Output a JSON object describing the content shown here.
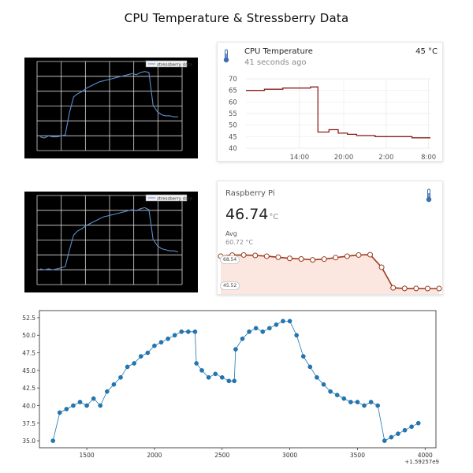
{
  "page": {
    "title": "CPU Temperature & Stressberry Data"
  },
  "stress_charts": [
    {
      "legend": "stressberry data"
    },
    {
      "legend": "stressberry data"
    }
  ],
  "history_card": {
    "title": "CPU Temperature",
    "subtitle": "41 seconds ago",
    "current": "45 °C",
    "icon": "thermometer-icon",
    "line_color": "#8b1e1e"
  },
  "gauge_card": {
    "title": "Raspberry Pi",
    "value": "46.74",
    "unit": "°C",
    "avg_label": "Avg",
    "avg_value": "60.72 °C",
    "max_pill": "68.54",
    "min_pill": "45.52",
    "icon": "thermometer-icon",
    "fill_color": "#fbe6e0",
    "line_color": "#9a3b1e"
  },
  "chart_data": [
    {
      "type": "line",
      "title": "",
      "legend": [
        "stressberry data"
      ],
      "grid": true,
      "background": "#000000",
      "series": [
        {
          "name": "stressberry data",
          "values": [
            10,
            9,
            11,
            10,
            10,
            11,
            12,
            33,
            48,
            51,
            53,
            56,
            58,
            60,
            62,
            63,
            64,
            65,
            66,
            67,
            68,
            69,
            70,
            69,
            71,
            72,
            71,
            40,
            34,
            31,
            30,
            30,
            29,
            29
          ]
        }
      ]
    },
    {
      "type": "line",
      "title": "",
      "legend": [
        "stressberry data"
      ],
      "grid": true,
      "background": "#000000",
      "series": [
        {
          "name": "stressberry data",
          "values": [
            12,
            11,
            12,
            11,
            12,
            13,
            14,
            30,
            44,
            48,
            50,
            53,
            55,
            57,
            59,
            61,
            62,
            63,
            64,
            65,
            66,
            67,
            68,
            67,
            69,
            70,
            68,
            40,
            34,
            31,
            30,
            29,
            29,
            28
          ]
        }
      ]
    },
    {
      "type": "line",
      "title": "",
      "x_ticks": [
        "14:00",
        "20:00",
        "2:00",
        "8:00"
      ],
      "y_ticks": [
        40,
        45,
        50,
        55,
        60,
        65,
        70
      ],
      "ylim": [
        40,
        70
      ],
      "grid": true,
      "series": [
        {
          "name": "CPU Temperature",
          "x": [
            0.0,
            0.05,
            0.1,
            0.15,
            0.2,
            0.25,
            0.3,
            0.35,
            0.38,
            0.39,
            0.42,
            0.45,
            0.5,
            0.55,
            0.6,
            0.65,
            0.7,
            0.75,
            0.8,
            0.85,
            0.9,
            0.95,
            1.0
          ],
          "values": [
            65,
            65,
            65.5,
            65.5,
            66,
            66,
            66,
            66.5,
            66.5,
            47,
            47,
            48,
            46.5,
            46,
            45.5,
            45.5,
            45,
            45,
            45,
            45,
            44.5,
            44.5,
            44.5
          ]
        }
      ]
    },
    {
      "type": "area",
      "title": "",
      "ylim": [
        45.52,
        68.54
      ],
      "series": [
        {
          "name": "Raspberry Pi",
          "values": [
            67.5,
            68.2,
            68.3,
            68.0,
            67.5,
            66.8,
            66.0,
            65.6,
            65.0,
            65.5,
            66.5,
            67.5,
            68.3,
            68.5,
            60.0,
            46.0,
            45.6,
            45.6,
            45.5,
            45.5
          ]
        }
      ]
    },
    {
      "type": "scatter",
      "title": "",
      "xlabel": "",
      "ylabel": "",
      "x_offset_label": "+1.59257e9",
      "x_ticks": [
        1500,
        2000,
        2500,
        3000,
        3500,
        4000
      ],
      "y_ticks": [
        35.0,
        37.5,
        40.0,
        42.5,
        45.0,
        47.5,
        50.0,
        52.5
      ],
      "xlim": [
        1150,
        4080
      ],
      "ylim": [
        34,
        53.5
      ],
      "grid": false,
      "color": "#1f77b4",
      "series": [
        {
          "x": [
            1250,
            1300,
            1350,
            1400,
            1450,
            1500,
            1550,
            1600,
            1650,
            1700,
            1750,
            1800,
            1850,
            1900,
            1950,
            2000,
            2050,
            2100,
            2150,
            2200,
            2250,
            2300,
            2310,
            2350,
            2400,
            2450,
            2500,
            2550,
            2590,
            2600,
            2650,
            2700,
            2750,
            2800,
            2850,
            2900,
            2950,
            3000,
            3050,
            3100,
            3150,
            3200,
            3250,
            3300,
            3350,
            3400,
            3450,
            3500,
            3550,
            3600,
            3650,
            3700,
            3750,
            3800,
            3850,
            3900,
            3950
          ],
          "y": [
            35.0,
            39.0,
            39.5,
            40.0,
            40.5,
            40.0,
            41.0,
            40.0,
            42.0,
            43.0,
            44.0,
            45.5,
            46.0,
            47.0,
            47.5,
            48.5,
            49.0,
            49.5,
            50.0,
            50.5,
            50.5,
            50.5,
            46.0,
            45.0,
            44.0,
            44.5,
            44.0,
            43.5,
            43.5,
            48.0,
            49.5,
            50.5,
            51.0,
            50.5,
            51.0,
            51.5,
            52.0,
            52.0,
            50.0,
            47.0,
            45.5,
            44.0,
            43.0,
            42.0,
            41.5,
            41.0,
            40.5,
            40.5,
            40.0,
            40.5,
            40.0,
            35.0,
            35.5,
            36.0,
            36.5,
            37.0,
            37.5
          ]
        }
      ]
    }
  ]
}
